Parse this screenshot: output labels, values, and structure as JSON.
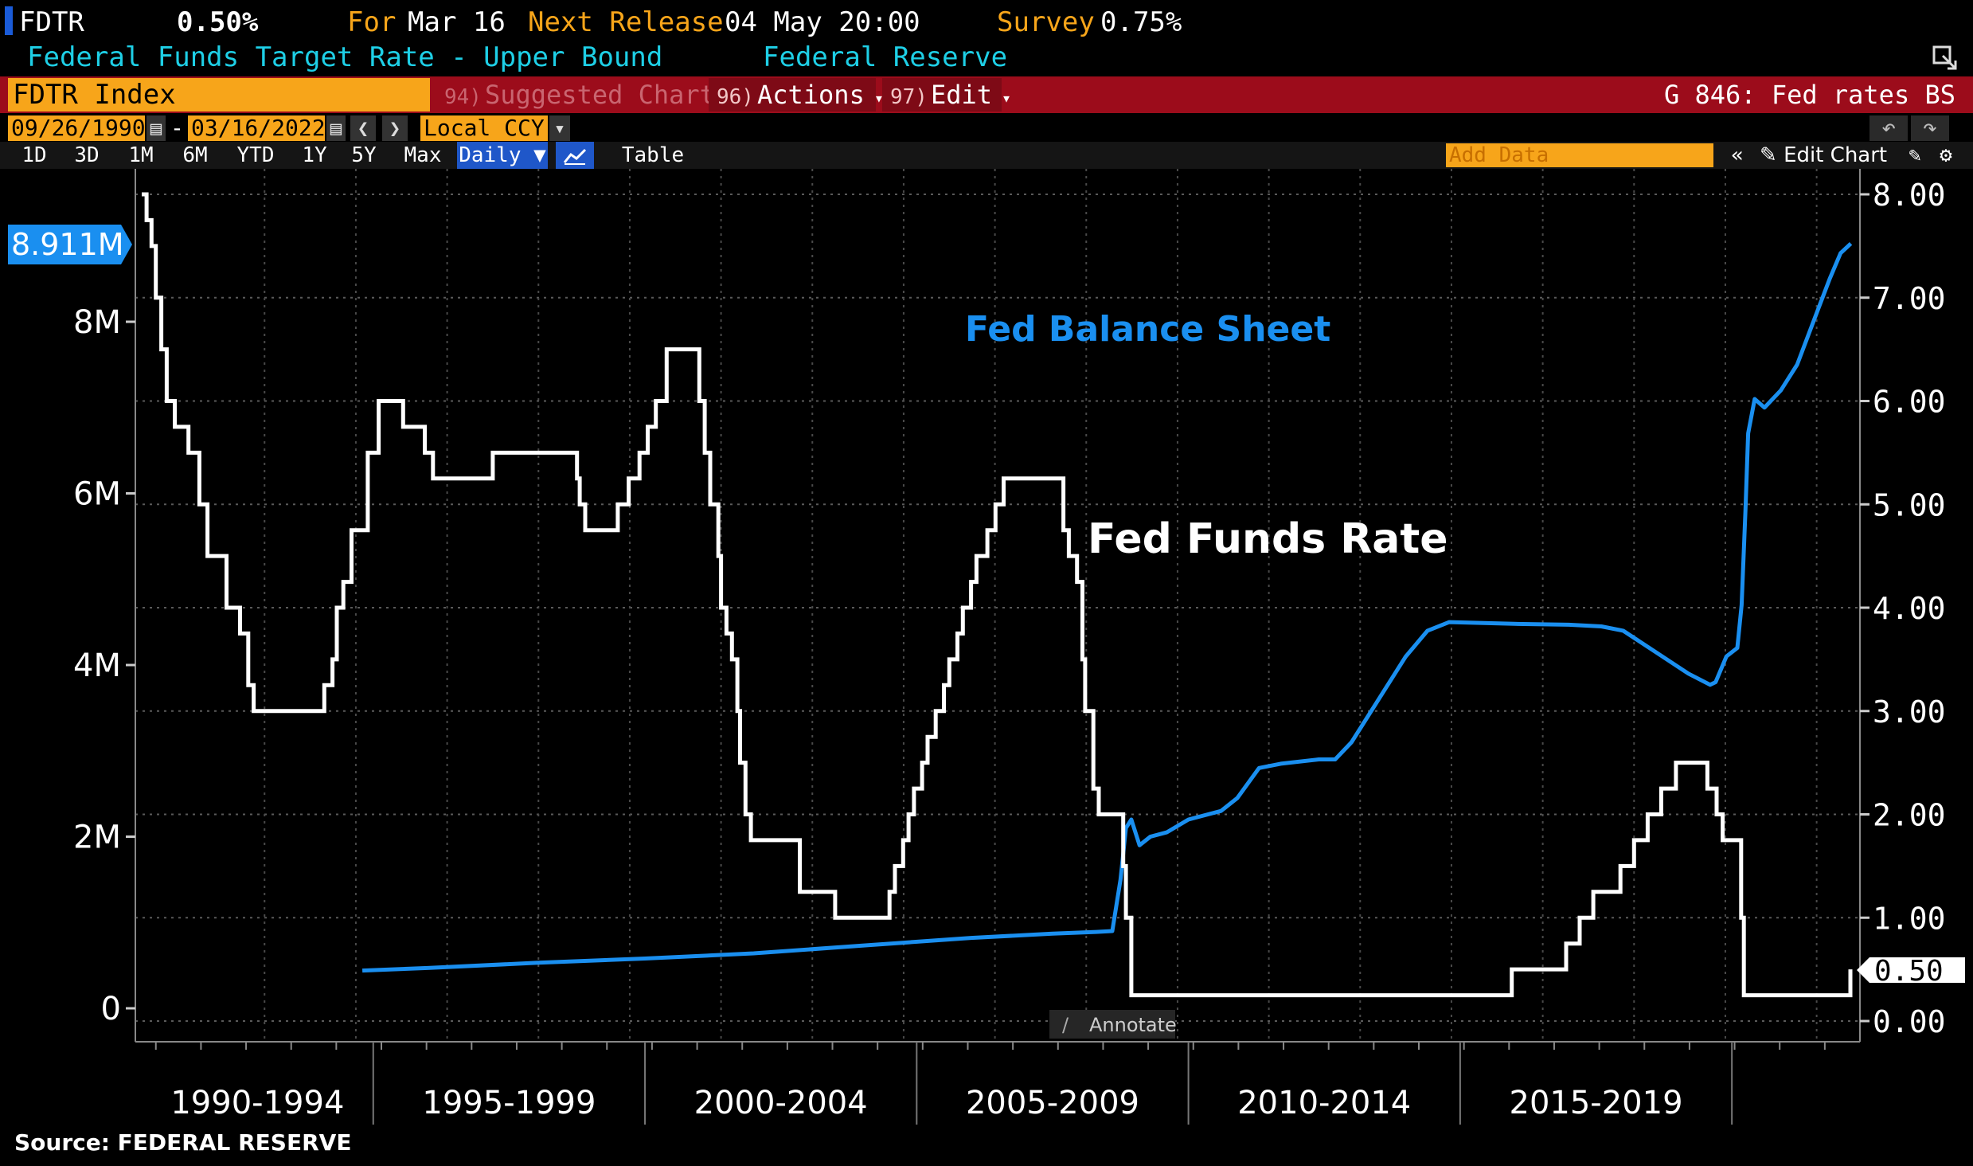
{
  "header": {
    "ticker": "FDTR",
    "value": "0.50%",
    "for_label": "For",
    "for_date": "Mar 16",
    "next_release_label": "Next Release",
    "next_release": "04 May 20:00",
    "survey_label": "Survey",
    "survey_value": "0.75%",
    "description": "Federal Funds Target Rate - Upper Bound",
    "source_name": "Federal Reserve"
  },
  "toolbar": {
    "index": "FDTR Index",
    "suggested_num": "94)",
    "suggested_label": "Suggested Charts",
    "actions_num": "96)",
    "actions_label": "Actions",
    "edit_num": "97)",
    "edit_label": "Edit",
    "page_label": "G 846: Fed rates BS"
  },
  "date_row": {
    "start_date": "09/26/1990",
    "end_date": "03/16/2022",
    "currency": "Local CCY"
  },
  "range_row": {
    "buttons": [
      "1D",
      "3D",
      "1M",
      "6M",
      "YTD",
      "1Y",
      "5Y",
      "Max"
    ],
    "frequency": "Daily",
    "table_label": "Table",
    "add_data_placeholder": "Add Data",
    "edit_chart_label": "Edit Chart"
  },
  "annotate_label": "Annotate",
  "source_text": "Source: FEDERAL RESERVE",
  "colors": {
    "balance_sheet": "#1a8ff0",
    "fed_funds": "#ffffff",
    "accent_orange": "#f7a51a",
    "toolbar_red": "#9c0c1b"
  },
  "chart_data": {
    "type": "line",
    "left_axis": {
      "ticks": [
        "0",
        "2M",
        "4M",
        "6M",
        "8M"
      ],
      "ylim": [
        0,
        8911000
      ],
      "last_value_label": "8.911M"
    },
    "right_axis": {
      "ticks": [
        "0.00",
        "1.00",
        "2.00",
        "3.00",
        "4.00",
        "5.00",
        "6.00",
        "7.00",
        "8.00"
      ],
      "ylim": [
        0,
        8
      ],
      "last_value_label": "0.50"
    },
    "x_labels": [
      "1990-1994",
      "1995-1999",
      "2000-2004",
      "2005-2009",
      "2010-2014",
      "2015-2019"
    ],
    "xlim": [
      1990.74,
      2022.21
    ],
    "annotations": [
      "Fed Balance Sheet",
      "Fed Funds Rate"
    ],
    "series": [
      {
        "name": "Fed Funds Rate",
        "axis": "right",
        "points": [
          [
            1990.74,
            8.0
          ],
          [
            1990.83,
            7.75
          ],
          [
            1990.92,
            7.5
          ],
          [
            1991.0,
            7.0
          ],
          [
            1991.1,
            6.5
          ],
          [
            1991.2,
            6.0
          ],
          [
            1991.35,
            5.75
          ],
          [
            1991.6,
            5.5
          ],
          [
            1991.8,
            5.0
          ],
          [
            1991.95,
            4.5
          ],
          [
            1992.3,
            4.0
          ],
          [
            1992.55,
            3.75
          ],
          [
            1992.7,
            3.25
          ],
          [
            1992.8,
            3.0
          ],
          [
            1994.1,
            3.25
          ],
          [
            1994.25,
            3.5
          ],
          [
            1994.33,
            4.0
          ],
          [
            1994.45,
            4.25
          ],
          [
            1994.6,
            4.75
          ],
          [
            1994.9,
            5.5
          ],
          [
            1995.1,
            6.0
          ],
          [
            1995.55,
            5.75
          ],
          [
            1995.95,
            5.5
          ],
          [
            1996.1,
            5.25
          ],
          [
            1997.2,
            5.5
          ],
          [
            1998.75,
            5.25
          ],
          [
            1998.8,
            5.0
          ],
          [
            1998.9,
            4.75
          ],
          [
            1999.5,
            5.0
          ],
          [
            1999.7,
            5.25
          ],
          [
            1999.9,
            5.5
          ],
          [
            2000.05,
            5.75
          ],
          [
            2000.2,
            6.0
          ],
          [
            2000.4,
            6.5
          ],
          [
            2001.0,
            6.0
          ],
          [
            2001.1,
            5.5
          ],
          [
            2001.2,
            5.0
          ],
          [
            2001.35,
            4.5
          ],
          [
            2001.4,
            4.0
          ],
          [
            2001.5,
            3.75
          ],
          [
            2001.6,
            3.5
          ],
          [
            2001.7,
            3.0
          ],
          [
            2001.75,
            2.5
          ],
          [
            2001.85,
            2.0
          ],
          [
            2001.95,
            1.75
          ],
          [
            2002.85,
            1.25
          ],
          [
            2003.5,
            1.0
          ],
          [
            2004.5,
            1.25
          ],
          [
            2004.6,
            1.5
          ],
          [
            2004.75,
            1.75
          ],
          [
            2004.85,
            2.0
          ],
          [
            2004.95,
            2.25
          ],
          [
            2005.1,
            2.5
          ],
          [
            2005.2,
            2.75
          ],
          [
            2005.35,
            3.0
          ],
          [
            2005.5,
            3.25
          ],
          [
            2005.6,
            3.5
          ],
          [
            2005.75,
            3.75
          ],
          [
            2005.85,
            4.0
          ],
          [
            2006.0,
            4.25
          ],
          [
            2006.1,
            4.5
          ],
          [
            2006.3,
            4.75
          ],
          [
            2006.45,
            5.0
          ],
          [
            2006.6,
            5.25
          ],
          [
            2007.7,
            4.75
          ],
          [
            2007.8,
            4.5
          ],
          [
            2007.95,
            4.25
          ],
          [
            2008.05,
            3.5
          ],
          [
            2008.1,
            3.0
          ],
          [
            2008.25,
            2.25
          ],
          [
            2008.35,
            2.0
          ],
          [
            2008.8,
            1.5
          ],
          [
            2008.85,
            1.0
          ],
          [
            2008.95,
            0.25
          ],
          [
            2015.95,
            0.5
          ],
          [
            2016.95,
            0.75
          ],
          [
            2017.2,
            1.0
          ],
          [
            2017.45,
            1.25
          ],
          [
            2017.95,
            1.5
          ],
          [
            2018.2,
            1.75
          ],
          [
            2018.45,
            2.0
          ],
          [
            2018.7,
            2.25
          ],
          [
            2018.97,
            2.5
          ],
          [
            2019.55,
            2.25
          ],
          [
            2019.72,
            2.0
          ],
          [
            2019.83,
            1.75
          ],
          [
            2020.17,
            1.0
          ],
          [
            2020.22,
            0.25
          ],
          [
            2022.17,
            0.25
          ],
          [
            2022.18,
            0.5
          ]
        ]
      },
      {
        "name": "Fed Balance Sheet",
        "axis": "left",
        "points": [
          [
            1994.8,
            440000
          ],
          [
            1996.0,
            470000
          ],
          [
            1998.0,
            530000
          ],
          [
            2000.0,
            580000
          ],
          [
            2002.0,
            640000
          ],
          [
            2004.0,
            730000
          ],
          [
            2006.0,
            820000
          ],
          [
            2007.5,
            870000
          ],
          [
            2008.3,
            890000
          ],
          [
            2008.6,
            900000
          ],
          [
            2008.75,
            1500000
          ],
          [
            2008.85,
            2100000
          ],
          [
            2008.95,
            2200000
          ],
          [
            2009.1,
            1900000
          ],
          [
            2009.3,
            2000000
          ],
          [
            2009.6,
            2050000
          ],
          [
            2010.0,
            2200000
          ],
          [
            2010.6,
            2300000
          ],
          [
            2010.9,
            2450000
          ],
          [
            2011.3,
            2800000
          ],
          [
            2011.7,
            2850000
          ],
          [
            2012.4,
            2900000
          ],
          [
            2012.7,
            2900000
          ],
          [
            2013.0,
            3100000
          ],
          [
            2013.5,
            3600000
          ],
          [
            2014.0,
            4100000
          ],
          [
            2014.4,
            4400000
          ],
          [
            2014.8,
            4500000
          ],
          [
            2016.0,
            4480000
          ],
          [
            2017.0,
            4470000
          ],
          [
            2017.6,
            4450000
          ],
          [
            2018.0,
            4400000
          ],
          [
            2018.6,
            4150000
          ],
          [
            2019.2,
            3900000
          ],
          [
            2019.6,
            3770000
          ],
          [
            2019.7,
            3800000
          ],
          [
            2019.9,
            4100000
          ],
          [
            2020.1,
            4200000
          ],
          [
            2020.18,
            4700000
          ],
          [
            2020.25,
            5800000
          ],
          [
            2020.3,
            6700000
          ],
          [
            2020.42,
            7100000
          ],
          [
            2020.6,
            7000000
          ],
          [
            2020.9,
            7200000
          ],
          [
            2021.2,
            7500000
          ],
          [
            2021.5,
            8000000
          ],
          [
            2021.8,
            8500000
          ],
          [
            2022.0,
            8800000
          ],
          [
            2022.19,
            8911000
          ]
        ]
      }
    ]
  }
}
